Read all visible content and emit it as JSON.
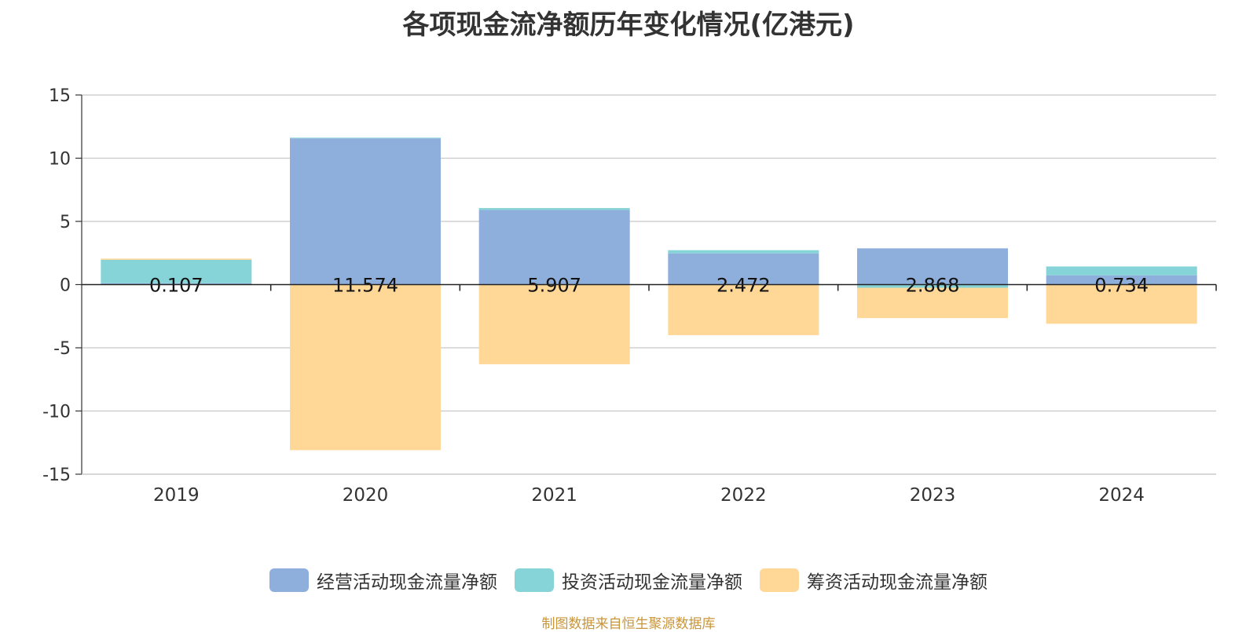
{
  "chart_data": {
    "type": "bar",
    "title": "各项现金流净额历年变化情况(亿港元)",
    "categories": [
      "2019",
      "2020",
      "2021",
      "2022",
      "2023",
      "2024"
    ],
    "series": [
      {
        "name": "经营活动现金流量净额",
        "color": "#8eaedb",
        "values": [
          0.107,
          11.574,
          5.907,
          2.472,
          2.868,
          0.734
        ],
        "labels": [
          "0.107",
          "11.574",
          "5.907",
          "2.472",
          "2.868",
          "0.734"
        ]
      },
      {
        "name": "投资活动现金流量净额",
        "color": "#86d4d7",
        "values": [
          1.85,
          0.05,
          0.15,
          0.25,
          -0.25,
          0.7
        ]
      },
      {
        "name": "筹资活动现金流量净额",
        "color": "#ffd897",
        "values": [
          0.1,
          -13.1,
          -6.3,
          -4.0,
          -2.4,
          -3.1
        ]
      }
    ],
    "yticks": [
      "15",
      "10",
      "5",
      "0",
      "-5",
      "-10",
      "-15"
    ],
    "ylim": [
      -15,
      15
    ],
    "stacked": true,
    "grid": true,
    "legend_position": "bottom"
  },
  "source_note": "制图数据来自恒生聚源数据库"
}
